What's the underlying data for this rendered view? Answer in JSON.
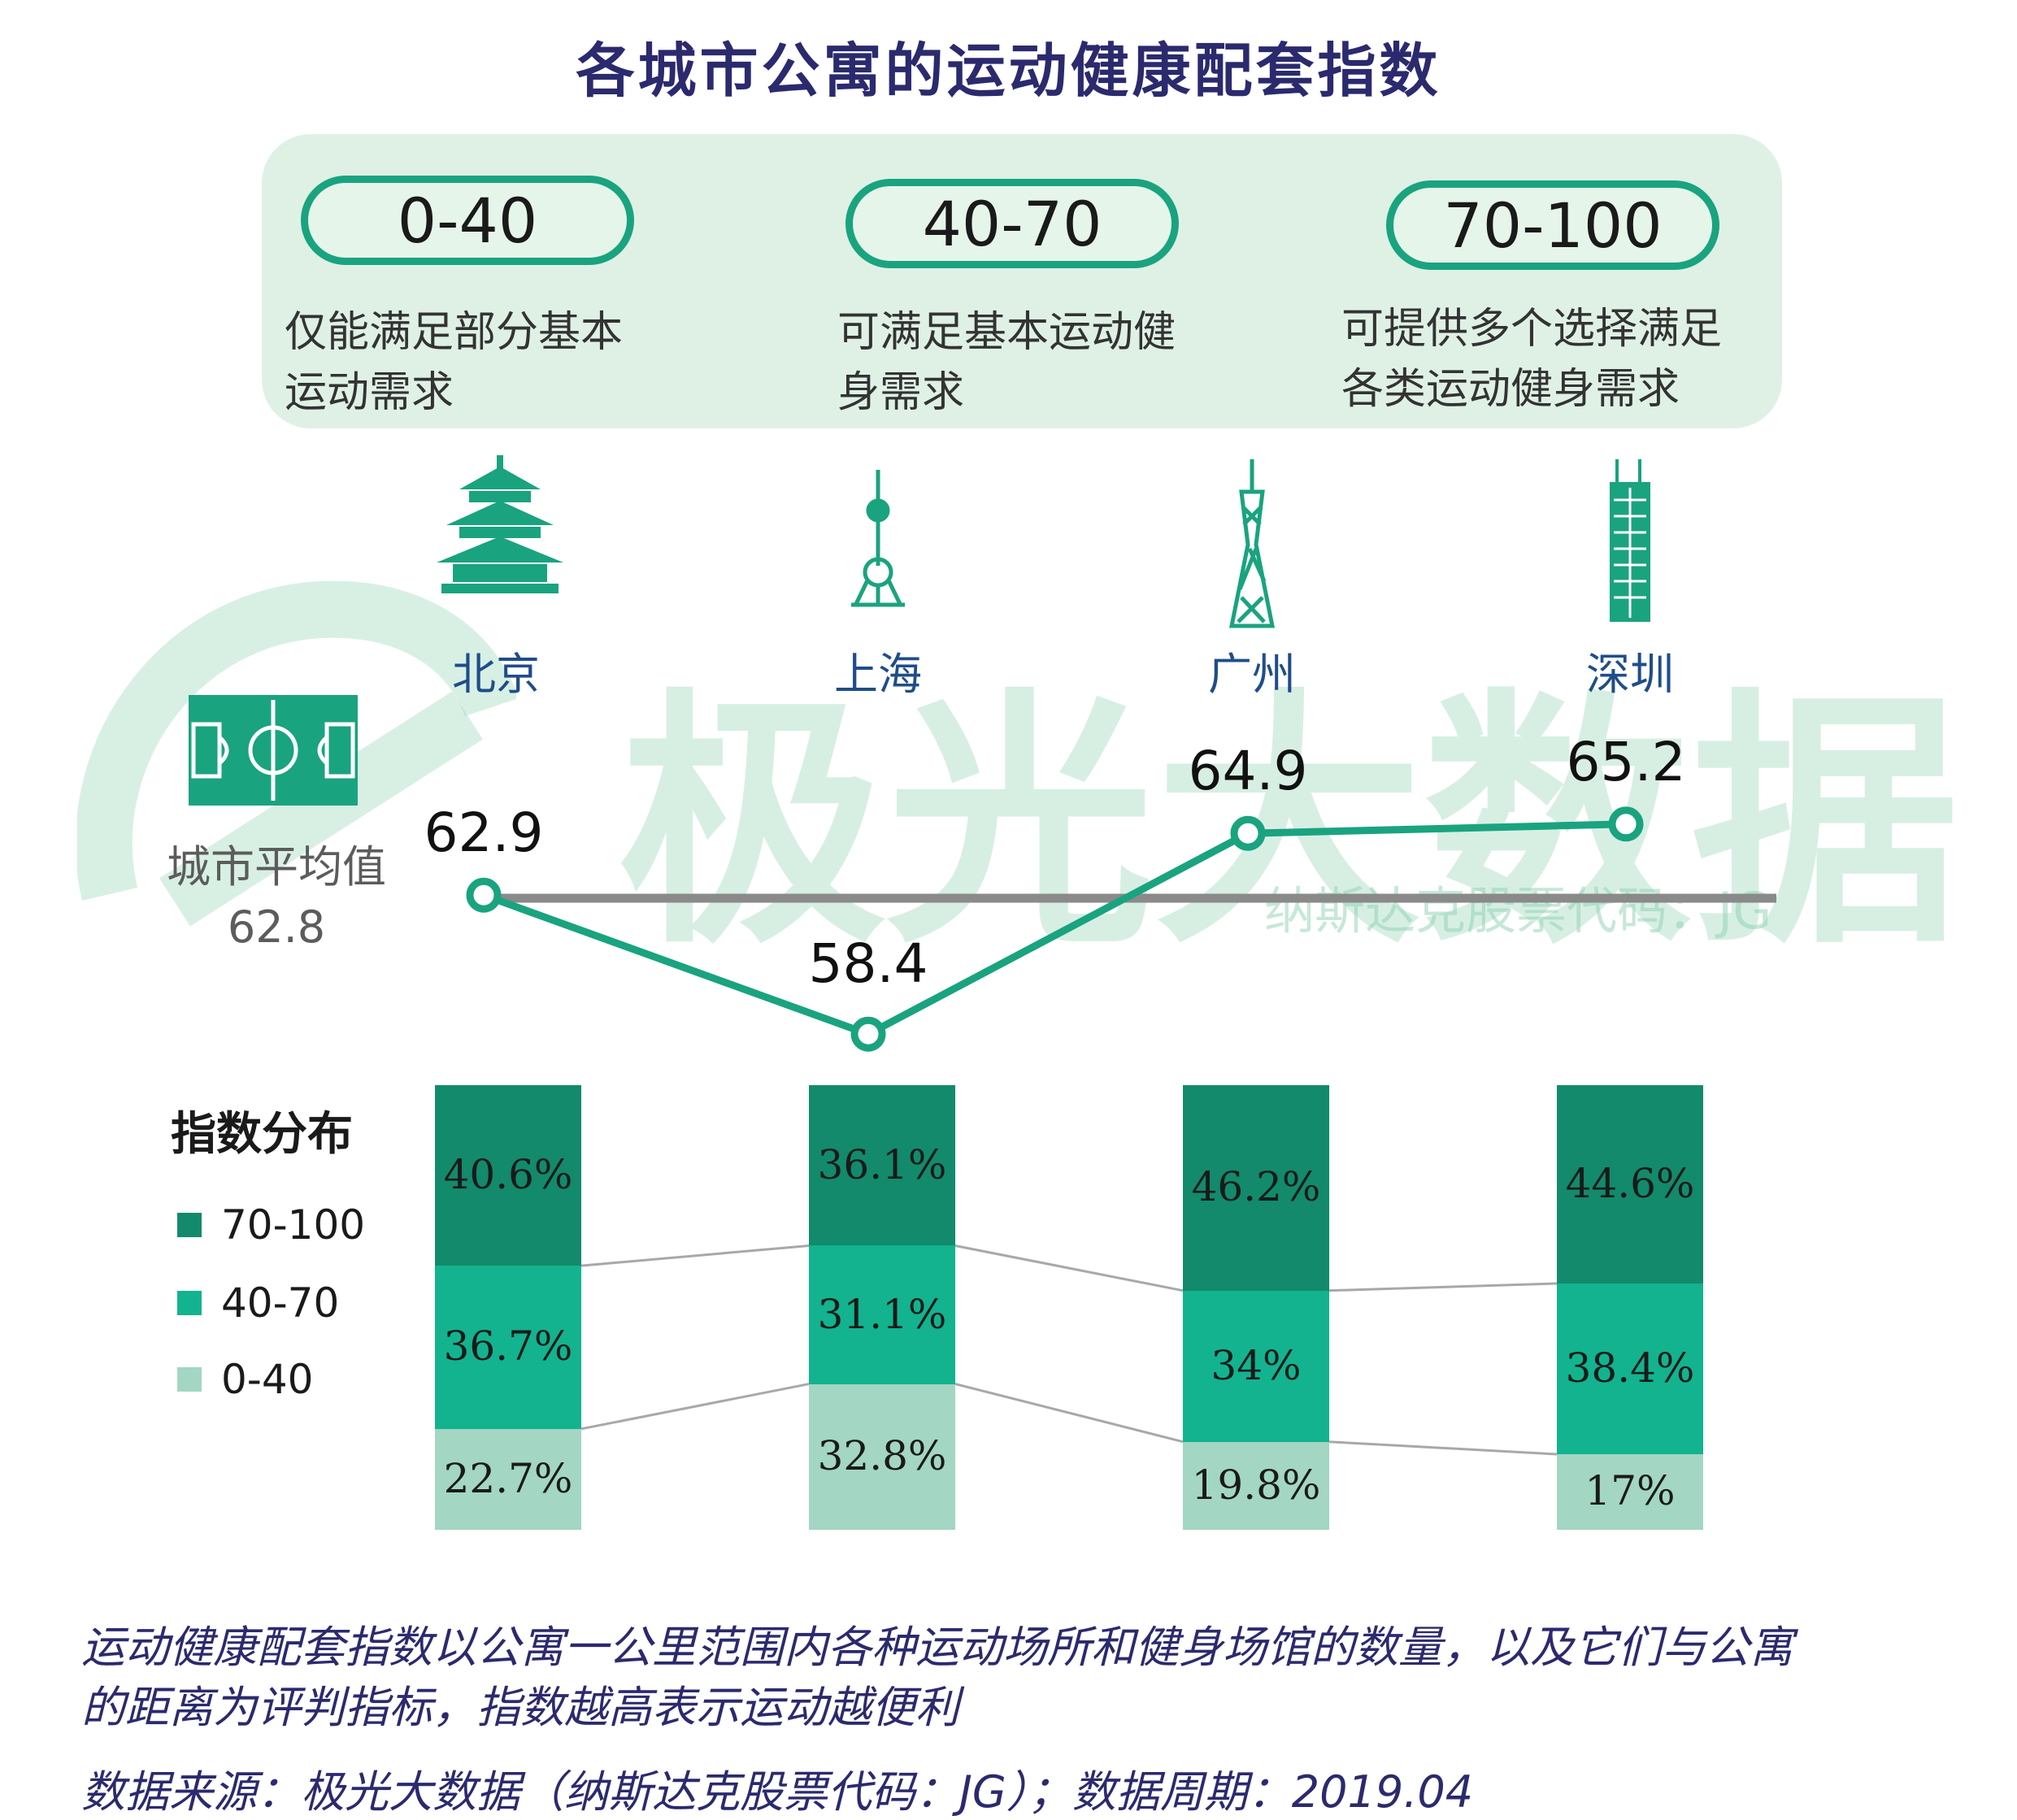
{
  "title": "各城市公寓的运动健康配套指数",
  "ranges": [
    {
      "label": "0-40",
      "desc_line1": "仅能满足部分基本",
      "desc_line2": "运动需求"
    },
    {
      "label": "40-70",
      "desc_line1": "可满足基本运动健",
      "desc_line2": "身需求"
    },
    {
      "label": "70-100",
      "desc_line1": "可提供多个选择满足",
      "desc_line2": "各类运动健身需求"
    }
  ],
  "watermark": {
    "main": "极光大数据",
    "sub": "纳斯达克股票代码：JG"
  },
  "average": {
    "label": "城市平均值",
    "value": "62.8"
  },
  "colors": {
    "dark": "#128a6b",
    "mid": "#12b38e",
    "light": "#a3d6c3",
    "line": "#1aa37f",
    "avg_line": "#8a8a8a"
  },
  "chart_data": {
    "type": "line",
    "categories": [
      "北京",
      "上海",
      "广州",
      "深圳"
    ],
    "values": [
      62.9,
      58.4,
      64.9,
      65.2
    ],
    "value_labels": [
      "62.9",
      "58.4",
      "64.9",
      "65.2"
    ],
    "reference_line": 62.8
  },
  "distribution": {
    "title": "指数分布",
    "legend": [
      "70-100",
      "40-70",
      "0-40"
    ],
    "bars": [
      {
        "city": "北京",
        "high": 40.6,
        "mid": 36.7,
        "low": 22.7,
        "high_label": "40.6%",
        "mid_label": "36.7%",
        "low_label": "22.7%"
      },
      {
        "city": "上海",
        "high": 36.1,
        "mid": 31.1,
        "low": 32.8,
        "high_label": "36.1%",
        "mid_label": "31.1%",
        "low_label": "32.8%"
      },
      {
        "city": "广州",
        "high": 46.2,
        "mid": 34,
        "low": 19.8,
        "high_label": "46.2%",
        "mid_label": "34%",
        "low_label": "19.8%"
      },
      {
        "city": "深圳",
        "high": 44.6,
        "mid": 38.4,
        "low": 17,
        "high_label": "44.6%",
        "mid_label": "38.4%",
        "low_label": "17%"
      }
    ]
  },
  "note_line1": "运动健康配套指数以公寓一公里范围内各种运动场所和健身场馆的数量，以及它们与公寓",
  "note_line2": "的距离为评判指标，指数越高表示运动越便利",
  "source": "数据来源：极光大数据（纳斯达克股票代码：JG）；数据周期：2019.04"
}
